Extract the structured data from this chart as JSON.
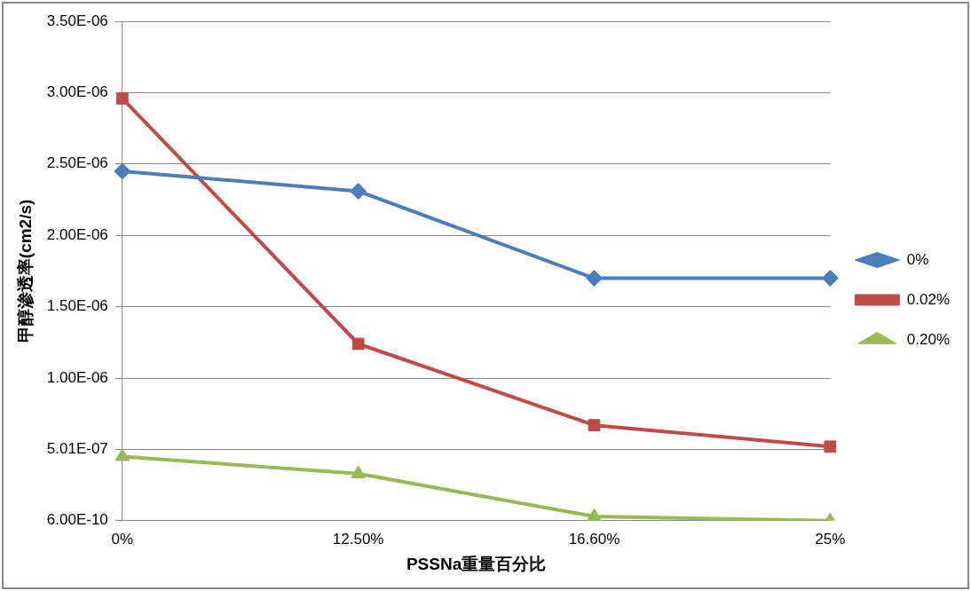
{
  "chart_data": {
    "type": "line",
    "xlabel": "PSSNa重量百分比",
    "ylabel": "甲醇渗透率(cm2/s)",
    "categories": [
      "0%",
      "12.50%",
      "16.60%",
      "25%"
    ],
    "series": [
      {
        "name": "0%",
        "color": "#4a7ebb",
        "marker": "diamond",
        "values": [
          2.45e-06,
          2.31e-06,
          1.7e-06,
          1.7e-06
        ]
      },
      {
        "name": "0.02%",
        "color": "#be4b48",
        "marker": "square",
        "values": [
          2.96e-06,
          1.24e-06,
          6.7e-07,
          5.2e-07
        ]
      },
      {
        "name": "0.20%",
        "color": "#98b954",
        "marker": "triangle",
        "values": [
          4.5e-07,
          3.3e-07,
          3e-08,
          6e-10
        ]
      }
    ],
    "ylim": [
      6e-10,
      3.5006e-06
    ],
    "yticks": [
      {
        "value": 6e-10,
        "label": "6.00E-10"
      },
      {
        "value": 5.006e-07,
        "label": "5.01E-07"
      },
      {
        "value": 1.0006e-06,
        "label": "1.00E-06"
      },
      {
        "value": 1.5006e-06,
        "label": "1.50E-06"
      },
      {
        "value": 2.0006e-06,
        "label": "2.00E-06"
      },
      {
        "value": 2.5006e-06,
        "label": "2.50E-06"
      },
      {
        "value": 3.0006e-06,
        "label": "3.00E-06"
      },
      {
        "value": 3.5006e-06,
        "label": "3.50E-06"
      }
    ],
    "grid": "y",
    "legend": "right",
    "line_style": "solid"
  }
}
